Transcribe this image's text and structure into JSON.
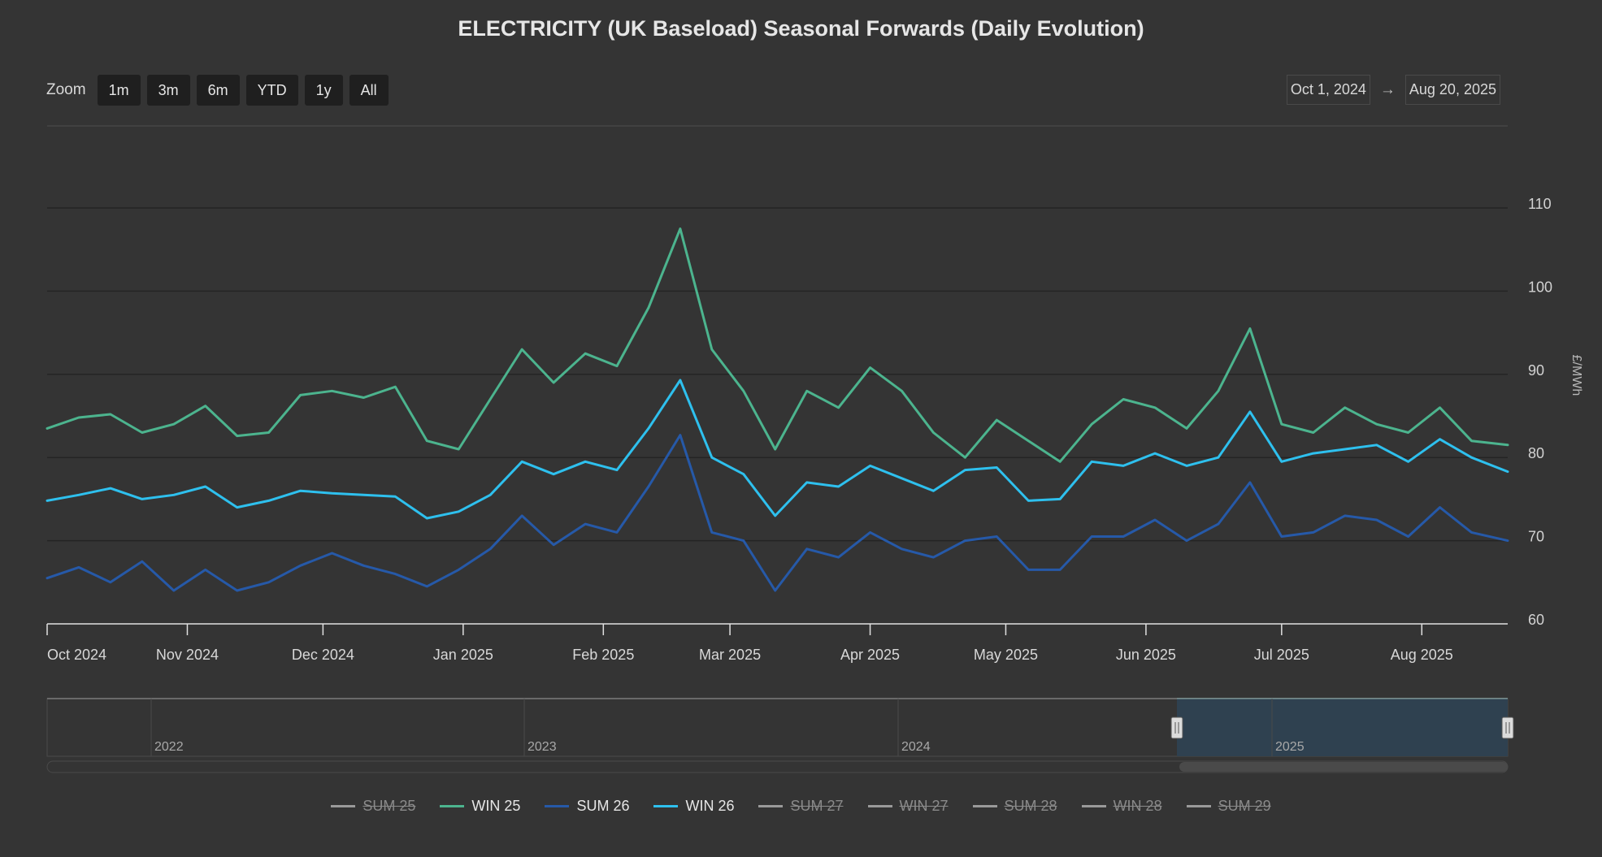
{
  "title": "ELECTRICITY (UK Baseload) Seasonal Forwards (Daily Evolution)",
  "zoom": {
    "label": "Zoom",
    "buttons": [
      "1m",
      "3m",
      "6m",
      "YTD",
      "1y",
      "All"
    ]
  },
  "range": {
    "from": "Oct 1, 2024",
    "arrow": "→",
    "to": "Aug 20, 2025"
  },
  "navigator": {
    "year_labels": [
      "2022",
      "2023",
      "2024",
      "2025"
    ]
  },
  "legend": [
    {
      "name": "SUM 25",
      "color": "#9a9a9a",
      "visible": false
    },
    {
      "name": "WIN 25",
      "color": "#4cb48e",
      "visible": true
    },
    {
      "name": "SUM 26",
      "color": "#2659a8",
      "visible": true
    },
    {
      "name": "WIN 26",
      "color": "#2ec0ee",
      "visible": true
    },
    {
      "name": "SUM 27",
      "color": "#9a9a9a",
      "visible": false
    },
    {
      "name": "WIN 27",
      "color": "#9a9a9a",
      "visible": false
    },
    {
      "name": "SUM 28",
      "color": "#9a9a9a",
      "visible": false
    },
    {
      "name": "WIN 28",
      "color": "#9a9a9a",
      "visible": false
    },
    {
      "name": "SUM 29",
      "color": "#9a9a9a",
      "visible": false
    }
  ],
  "chart_data": {
    "type": "line",
    "title": "ELECTRICITY (UK Baseload) Seasonal Forwards (Daily Evolution)",
    "xlabel": "",
    "ylabel": "£/MWh",
    "x_ticks": [
      "Oct 2024",
      "Nov 2024",
      "Dec 2024",
      "Jan 2025",
      "Feb 2025",
      "Mar 2025",
      "Apr 2025",
      "May 2025",
      "Jun 2025",
      "Jul 2025",
      "Aug 2025"
    ],
    "y_ticks": [
      60,
      70,
      80,
      90,
      100,
      110
    ],
    "xlim": [
      "2024-10-01",
      "2025-08-20"
    ],
    "ylim": [
      60,
      110
    ],
    "grid": true,
    "legend_position": "bottom",
    "series": [
      {
        "name": "WIN 25",
        "color": "#4cb48e",
        "x": [
          "2024-10-01",
          "2024-10-08",
          "2024-10-15",
          "2024-10-22",
          "2024-10-29",
          "2024-11-05",
          "2024-11-12",
          "2024-11-19",
          "2024-11-26",
          "2024-12-03",
          "2024-12-10",
          "2024-12-17",
          "2024-12-24",
          "2024-12-31",
          "2025-01-07",
          "2025-01-14",
          "2025-01-21",
          "2025-01-28",
          "2025-02-04",
          "2025-02-11",
          "2025-02-18",
          "2025-02-25",
          "2025-03-04",
          "2025-03-11",
          "2025-03-18",
          "2025-03-25",
          "2025-04-01",
          "2025-04-08",
          "2025-04-15",
          "2025-04-22",
          "2025-04-29",
          "2025-05-06",
          "2025-05-13",
          "2025-05-20",
          "2025-05-27",
          "2025-06-03",
          "2025-06-10",
          "2025-06-17",
          "2025-06-24",
          "2025-07-01",
          "2025-07-08",
          "2025-07-15",
          "2025-07-22",
          "2025-07-29",
          "2025-08-05",
          "2025-08-12",
          "2025-08-20"
        ],
        "values": [
          83.5,
          84.8,
          85.2,
          83.0,
          84.0,
          86.2,
          82.6,
          83.0,
          87.5,
          88.0,
          87.2,
          88.5,
          82.0,
          81.0,
          87.0,
          93.0,
          89.0,
          92.5,
          91.0,
          98.0,
          107.5,
          93.0,
          88.0,
          81.0,
          88.0,
          86.0,
          90.8,
          88.0,
          83.0,
          80.0,
          84.5,
          82.0,
          79.5,
          84.0,
          87.0,
          86.0,
          83.5,
          88.0,
          95.5,
          84.0,
          83.0,
          86.0,
          84.0,
          83.0,
          86.0,
          82.0,
          81.5
        ]
      },
      {
        "name": "WIN 26",
        "color": "#2ec0ee",
        "x": [
          "2024-10-01",
          "2024-10-08",
          "2024-10-15",
          "2024-10-22",
          "2024-10-29",
          "2024-11-05",
          "2024-11-12",
          "2024-11-19",
          "2024-11-26",
          "2024-12-03",
          "2024-12-10",
          "2024-12-17",
          "2024-12-24",
          "2024-12-31",
          "2025-01-07",
          "2025-01-14",
          "2025-01-21",
          "2025-01-28",
          "2025-02-04",
          "2025-02-11",
          "2025-02-18",
          "2025-02-25",
          "2025-03-04",
          "2025-03-11",
          "2025-03-18",
          "2025-03-25",
          "2025-04-01",
          "2025-04-08",
          "2025-04-15",
          "2025-04-22",
          "2025-04-29",
          "2025-05-06",
          "2025-05-13",
          "2025-05-20",
          "2025-05-27",
          "2025-06-03",
          "2025-06-10",
          "2025-06-17",
          "2025-06-24",
          "2025-07-01",
          "2025-07-08",
          "2025-07-15",
          "2025-07-22",
          "2025-07-29",
          "2025-08-05",
          "2025-08-12",
          "2025-08-20"
        ],
        "values": [
          74.8,
          75.5,
          76.3,
          75.0,
          75.5,
          76.5,
          74.0,
          74.8,
          76.0,
          75.7,
          75.5,
          75.3,
          72.7,
          73.5,
          75.5,
          79.5,
          78.0,
          79.5,
          78.5,
          83.5,
          89.3,
          80.0,
          78.0,
          73.0,
          77.0,
          76.5,
          79.0,
          77.5,
          76.0,
          78.5,
          78.8,
          74.8,
          75.0,
          79.5,
          79.0,
          80.5,
          79.0,
          80.0,
          85.5,
          79.5,
          80.5,
          81.0,
          81.5,
          79.5,
          82.2,
          80.0,
          78.3
        ]
      },
      {
        "name": "SUM 26",
        "color": "#2659a8",
        "x": [
          "2024-10-01",
          "2024-10-08",
          "2024-10-15",
          "2024-10-22",
          "2024-10-29",
          "2024-11-05",
          "2024-11-12",
          "2024-11-19",
          "2024-11-26",
          "2024-12-03",
          "2024-12-10",
          "2024-12-17",
          "2024-12-24",
          "2024-12-31",
          "2025-01-07",
          "2025-01-14",
          "2025-01-21",
          "2025-01-28",
          "2025-02-04",
          "2025-02-11",
          "2025-02-18",
          "2025-02-25",
          "2025-03-04",
          "2025-03-11",
          "2025-03-18",
          "2025-03-25",
          "2025-04-01",
          "2025-04-08",
          "2025-04-15",
          "2025-04-22",
          "2025-04-29",
          "2025-05-06",
          "2025-05-13",
          "2025-05-20",
          "2025-05-27",
          "2025-06-03",
          "2025-06-10",
          "2025-06-17",
          "2025-06-24",
          "2025-07-01",
          "2025-07-08",
          "2025-07-15",
          "2025-07-22",
          "2025-07-29",
          "2025-08-05",
          "2025-08-12",
          "2025-08-20"
        ],
        "values": [
          65.5,
          66.8,
          65.0,
          67.5,
          64.0,
          66.5,
          64.0,
          65.0,
          67.0,
          68.5,
          67.0,
          66.0,
          64.5,
          66.5,
          69.0,
          73.0,
          69.5,
          72.0,
          71.0,
          76.5,
          82.7,
          71.0,
          70.0,
          64.0,
          69.0,
          68.0,
          71.0,
          69.0,
          68.0,
          70.0,
          70.5,
          66.5,
          66.5,
          70.5,
          70.5,
          72.5,
          70.0,
          72.0,
          77.0,
          70.5,
          71.0,
          73.0,
          72.5,
          70.5,
          74.0,
          71.0,
          70.0
        ]
      }
    ]
  }
}
